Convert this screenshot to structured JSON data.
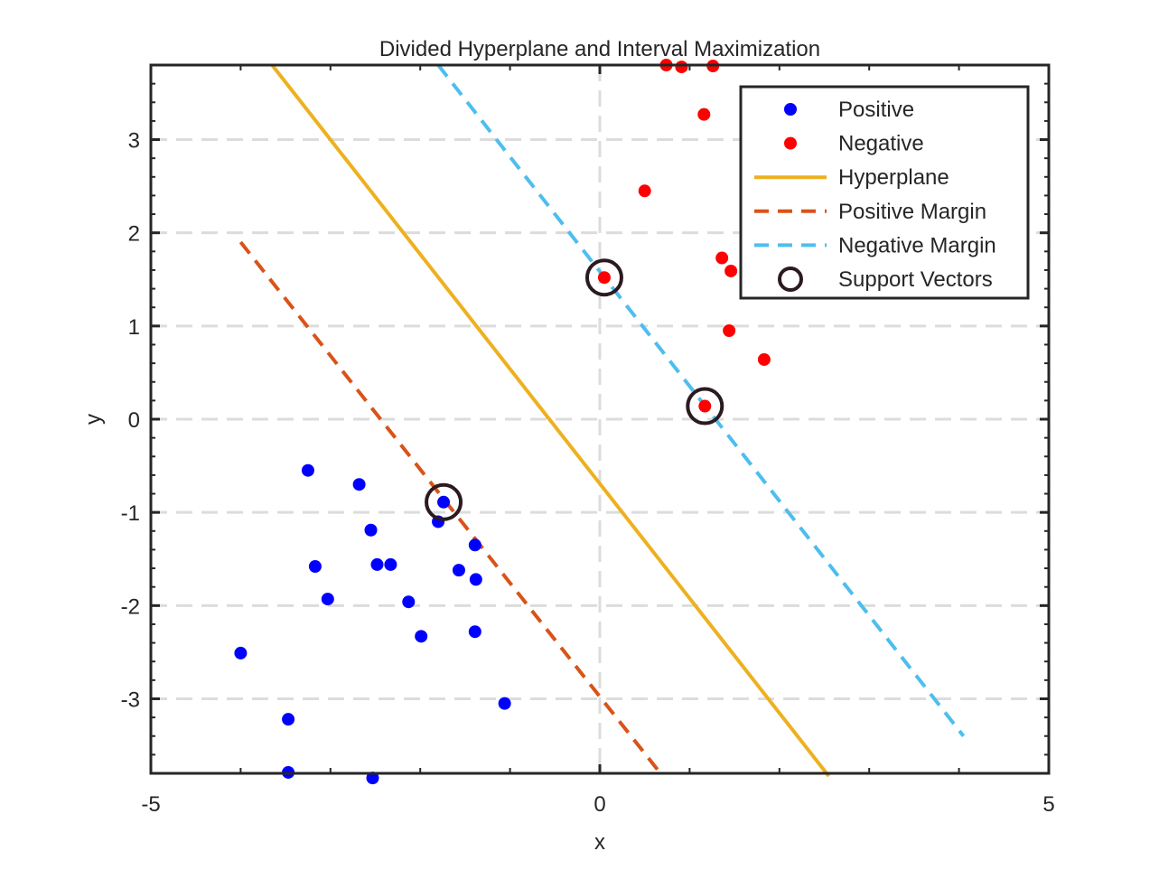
{
  "chart_data": {
    "type": "scatter",
    "title": "Divided Hyperplane and Interval Maximization",
    "xlabel": "x",
    "ylabel": "y",
    "xlim": [
      -5,
      5
    ],
    "ylim": [
      -3.8,
      3.8
    ],
    "xticks": [
      -5,
      0,
      5
    ],
    "yticks": [
      -3,
      -2,
      -1,
      0,
      1,
      2,
      3
    ],
    "xtick_labels": [
      "-5",
      "0",
      "5"
    ],
    "ytick_labels": [
      "-3",
      "-2",
      "-1",
      "0",
      "1",
      "2",
      "3"
    ],
    "grid": true,
    "legend_position": "top-right",
    "series": [
      {
        "name": "Positive",
        "kind": "points",
        "color": "#0000ff",
        "points": [
          [
            -3.25,
            -0.55
          ],
          [
            -2.68,
            -0.7
          ],
          [
            -2.55,
            -1.19
          ],
          [
            -3.17,
            -1.58
          ],
          [
            -2.48,
            -1.56
          ],
          [
            -2.33,
            -1.56
          ],
          [
            -3.03,
            -1.93
          ],
          [
            -2.13,
            -1.96
          ],
          [
            -1.99,
            -2.33
          ],
          [
            -4.0,
            -2.51
          ],
          [
            -1.8,
            -1.1
          ],
          [
            -1.74,
            -0.89
          ],
          [
            -1.39,
            -1.35
          ],
          [
            -1.57,
            -1.62
          ],
          [
            -1.38,
            -1.72
          ],
          [
            -1.39,
            -2.28
          ],
          [
            -1.06,
            -3.05
          ],
          [
            -3.47,
            -3.22
          ],
          [
            -3.47,
            -3.79
          ],
          [
            -2.53,
            -3.85
          ]
        ]
      },
      {
        "name": "Negative",
        "kind": "points",
        "color": "#ff0000",
        "points": [
          [
            0.74,
            3.8
          ],
          [
            0.91,
            3.78
          ],
          [
            1.26,
            3.79
          ],
          [
            1.16,
            3.27
          ],
          [
            0.5,
            2.45
          ],
          [
            1.36,
            1.73
          ],
          [
            1.46,
            1.59
          ],
          [
            0.05,
            1.52
          ],
          [
            1.44,
            0.95
          ],
          [
            1.83,
            0.64
          ],
          [
            1.17,
            0.14
          ]
        ]
      },
      {
        "name": "Hyperplane",
        "kind": "line",
        "color": "#edb120",
        "dash": "solid",
        "points": [
          [
            -3.65,
            3.8
          ],
          [
            2.55,
            -3.83
          ]
        ]
      },
      {
        "name": "Positive Margin",
        "kind": "line",
        "color": "#d95319",
        "dash": "dashed",
        "points": [
          [
            -4.0,
            1.9
          ],
          [
            0.7,
            -3.83
          ]
        ]
      },
      {
        "name": "Negative Margin",
        "kind": "line",
        "color": "#4dbeee",
        "dash": "dashed",
        "points": [
          [
            -1.8,
            3.8
          ],
          [
            4.05,
            -3.4
          ]
        ]
      },
      {
        "name": "Support Vectors",
        "kind": "circles",
        "color": "#2b1a1f",
        "points": [
          [
            -1.74,
            -0.89
          ],
          [
            0.05,
            1.52
          ],
          [
            1.17,
            0.14
          ]
        ]
      }
    ]
  }
}
